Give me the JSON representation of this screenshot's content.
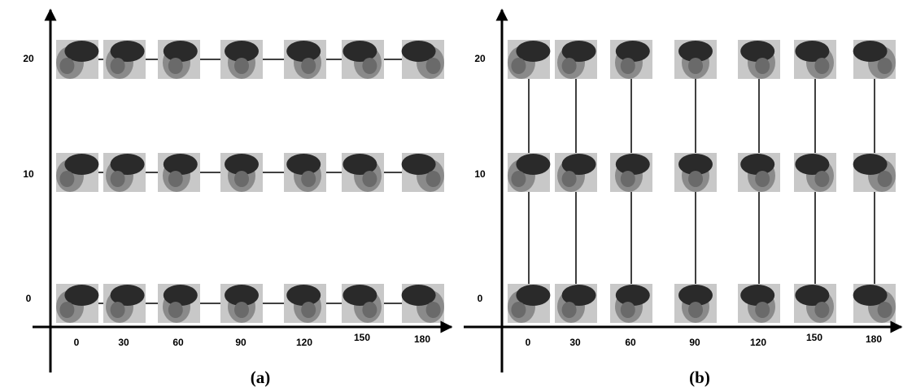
{
  "panels": [
    {
      "label": "(a)",
      "y_labels": [
        "20",
        "10",
        "0"
      ],
      "x_labels": [
        "0",
        "30",
        "60",
        "90",
        "120",
        "150",
        "180"
      ]
    },
    {
      "label": "(b)",
      "y_labels": [
        "20",
        "10",
        "0"
      ],
      "x_labels": [
        "0",
        "30",
        "60",
        "90",
        "120",
        "150",
        "180"
      ]
    }
  ]
}
